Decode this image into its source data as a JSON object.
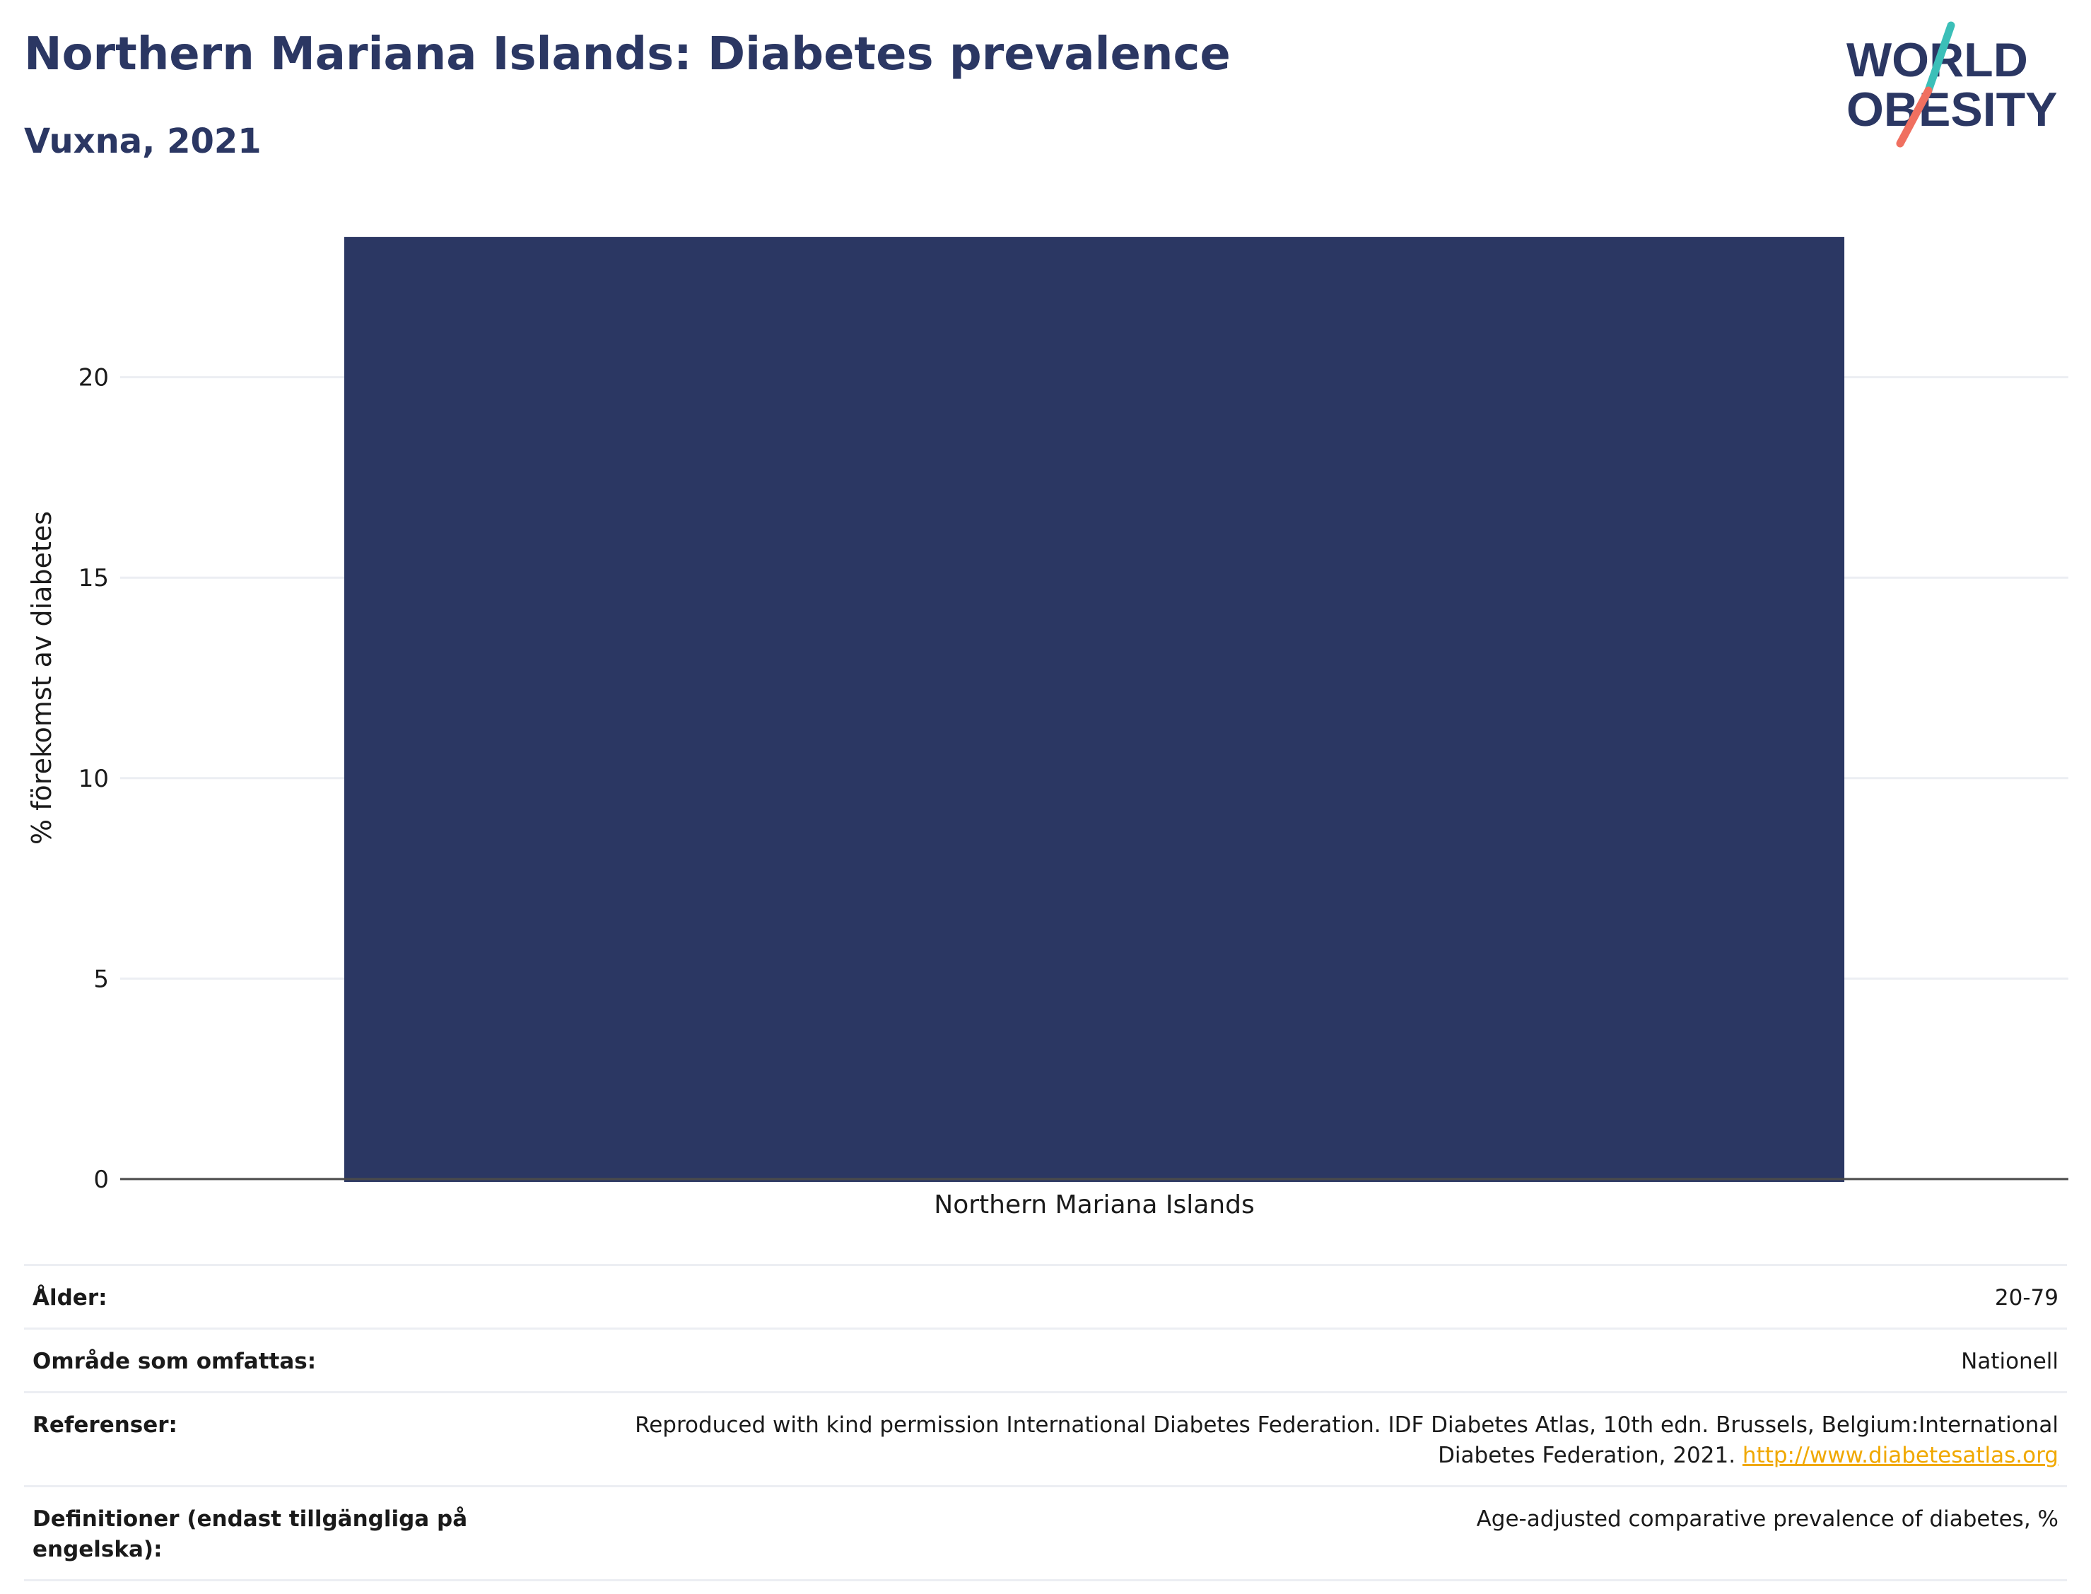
{
  "header": {
    "title": "Northern Mariana Islands: Diabetes prevalence",
    "subtitle": "Vuxna, 2021"
  },
  "logo": {
    "line1": "WORLD",
    "line2": "OBESITY",
    "color_text": "#2b3763",
    "color_accent_teal": "#3bbfb8",
    "color_accent_coral": "#f07060"
  },
  "colors": {
    "bar": "#2b3763",
    "grid": "#eceef3",
    "axis": "#4a4a4a"
  },
  "chart_data": {
    "type": "bar",
    "categories": [
      "Northern Mariana Islands"
    ],
    "values": [
      23.5
    ],
    "title": "Northern Mariana Islands: Diabetes prevalence",
    "subtitle": "Vuxna, 2021",
    "xlabel": "",
    "ylabel": "% förekomst av diabetes",
    "ylim": [
      0,
      25
    ],
    "yticks": [
      0,
      5,
      10,
      15,
      20
    ],
    "grid": true,
    "legend": "none"
  },
  "meta": [
    {
      "label": "Ålder:",
      "value": "20-79"
    },
    {
      "label": "Område som omfattas:",
      "value": "Nationell"
    },
    {
      "label": "Referenser:",
      "value_line1": "Reproduced with kind permission International Diabetes Federation.  IDF Diabetes Atlas, 10th edn. Brussels, Belgium:International",
      "value_line2": "Diabetes Federation, 2021. ",
      "link": "http://www.diabetesatlas.org"
    },
    {
      "label": "Definitioner (endast tillgängliga på engelska):",
      "value": "Age-adjusted comparative prevalence of diabetes, %"
    }
  ]
}
